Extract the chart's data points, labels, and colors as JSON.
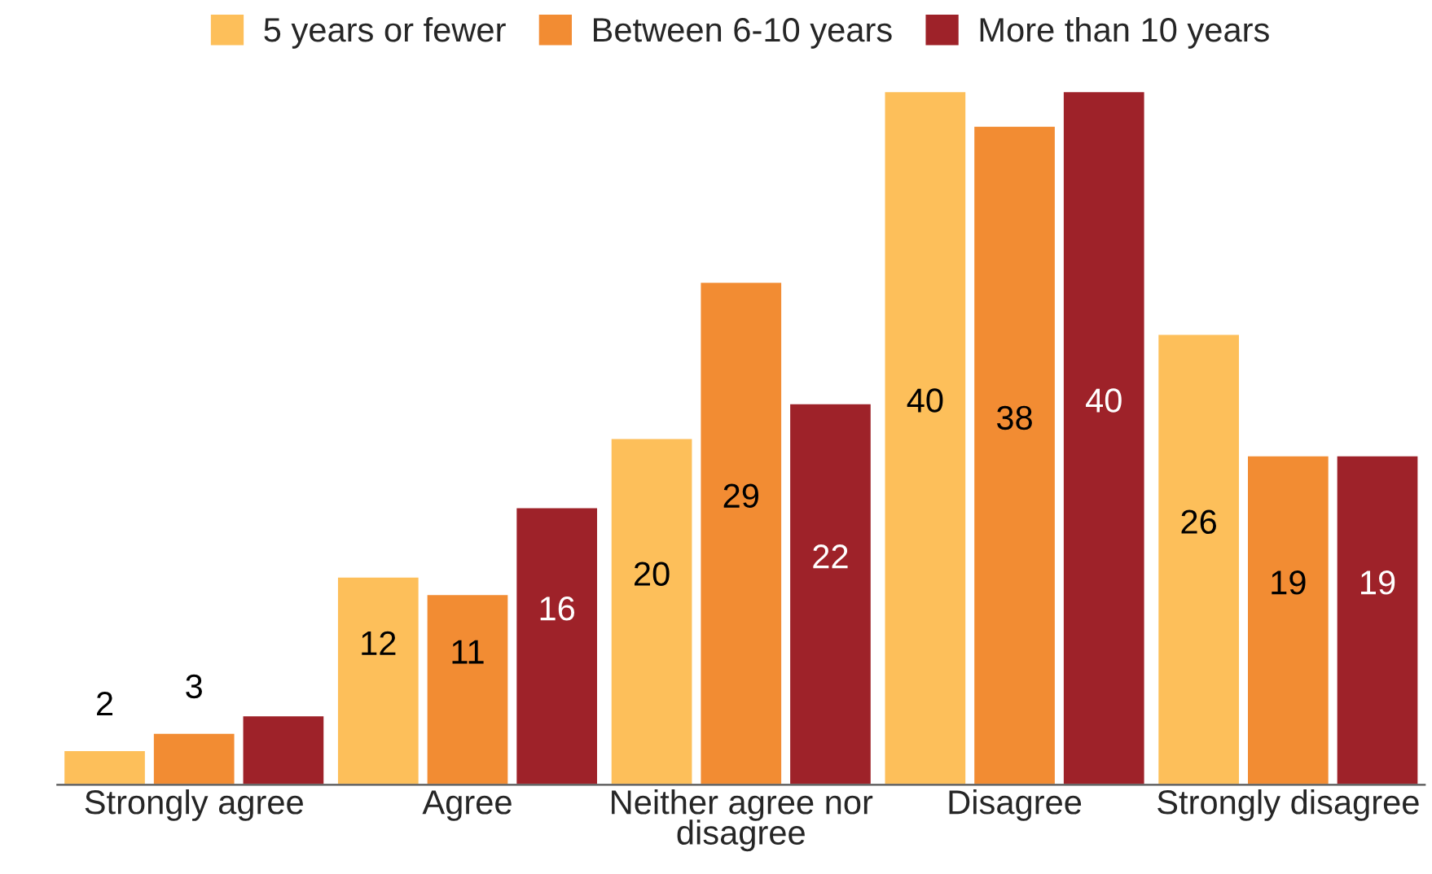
{
  "chart_data": {
    "type": "bar",
    "categories": [
      "Strongly agree",
      "Agree",
      "Neither agree nor\ndisagree",
      "Disagree",
      "Strongly disagree"
    ],
    "series": [
      {
        "name": "5 years or fewer",
        "color": "#fdbf5a",
        "values": [
          2,
          12,
          20,
          40,
          26
        ],
        "value_labels": [
          "2",
          "12",
          "20",
          "40",
          "26"
        ]
      },
      {
        "name": "Between 6-10 years",
        "color": "#f28c33",
        "values": [
          3,
          11,
          29,
          38,
          19
        ],
        "value_labels": [
          "3",
          "11",
          "29",
          "38",
          "19"
        ]
      },
      {
        "name": "More than 10 years",
        "color": "#9e2229",
        "values": [
          4,
          16,
          22,
          40,
          19
        ],
        "value_labels": [
          null,
          "16",
          "22",
          "40",
          "19"
        ]
      }
    ],
    "legend": "top",
    "grid": false
  }
}
